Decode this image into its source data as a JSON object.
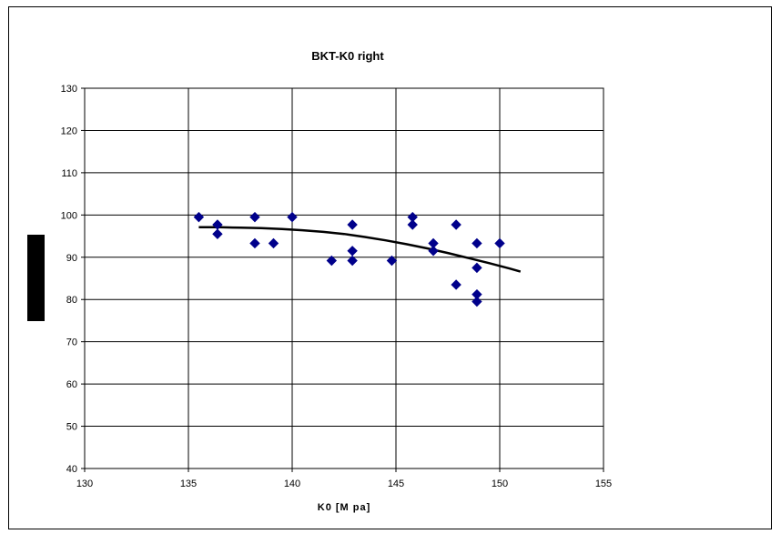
{
  "chart_data": {
    "type": "scatter",
    "title": "BKT-K0 right",
    "xlabel": "K0  [M pa]",
    "ylabel": "",
    "xlim": [
      130,
      155
    ],
    "ylim": [
      40,
      130
    ],
    "xticks": [
      130,
      135,
      140,
      145,
      150,
      155
    ],
    "yticks": [
      40,
      50,
      60,
      70,
      80,
      90,
      100,
      110,
      120,
      130
    ],
    "grid": true,
    "marker_color": "#00008B",
    "trend_color": "#000000",
    "series": [
      {
        "points": [
          [
            135.5,
            99.5
          ],
          [
            136.4,
            97.7
          ],
          [
            136.4,
            95.5
          ],
          [
            138.2,
            99.5
          ],
          [
            138.2,
            93.3
          ],
          [
            139.1,
            93.3
          ],
          [
            140.0,
            99.5
          ],
          [
            141.9,
            89.2
          ],
          [
            142.9,
            97.7
          ],
          [
            142.9,
            91.5
          ],
          [
            142.9,
            89.2
          ],
          [
            144.8,
            89.2
          ],
          [
            145.8,
            99.5
          ],
          [
            145.8,
            97.7
          ],
          [
            146.8,
            93.3
          ],
          [
            146.8,
            91.5
          ],
          [
            147.9,
            97.7
          ],
          [
            147.9,
            83.5
          ],
          [
            148.9,
            93.3
          ],
          [
            148.9,
            87.5
          ],
          [
            148.9,
            81.2
          ],
          [
            148.9,
            79.5
          ],
          [
            150.0,
            93.3
          ]
        ]
      }
    ],
    "trendline": [
      [
        135.5,
        97.1
      ],
      [
        136.5,
        97.1
      ],
      [
        137.5,
        97.0
      ],
      [
        138.5,
        96.9
      ],
      [
        139.5,
        96.7
      ],
      [
        140.5,
        96.4
      ],
      [
        141.5,
        96.0
      ],
      [
        142.5,
        95.5
      ],
      [
        143.5,
        94.8
      ],
      [
        144.5,
        94.0
      ],
      [
        145.5,
        93.1
      ],
      [
        146.5,
        92.1
      ],
      [
        147.5,
        91.0
      ],
      [
        148.5,
        89.8
      ],
      [
        149.5,
        88.6
      ],
      [
        150.5,
        87.3
      ],
      [
        151.0,
        86.6
      ]
    ]
  }
}
